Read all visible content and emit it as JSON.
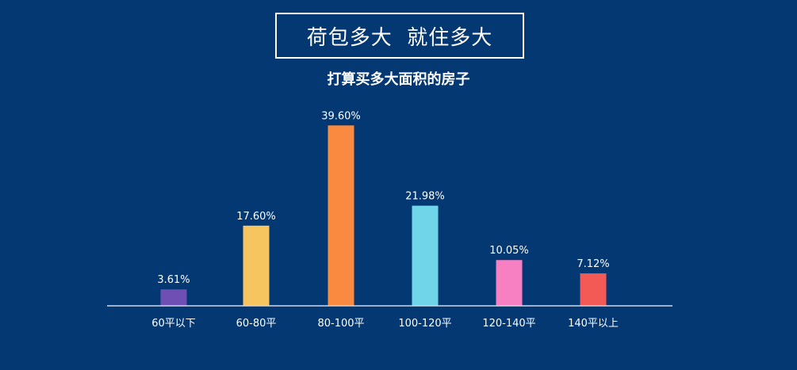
{
  "header": {
    "title": "荷包多大  就住多大",
    "subtitle": "打算买多大面积的房子"
  },
  "chart_data": {
    "type": "bar",
    "title": "荷包多大  就住多大",
    "subtitle": "打算买多大面积的房子",
    "categories": [
      "60平以下",
      "60-80平",
      "80-100平",
      "100-120平",
      "120-140平",
      "140平以上"
    ],
    "values": [
      3.61,
      17.6,
      39.6,
      21.98,
      10.05,
      7.12
    ],
    "value_labels": [
      "3.61%",
      "17.60%",
      "39.60%",
      "21.98%",
      "10.05%",
      "7.12%"
    ],
    "colors": [
      "#6f4fb4",
      "#f7c560",
      "#fa8a3f",
      "#70d5e8",
      "#f680c2",
      "#f35a55"
    ],
    "ylim": [
      0,
      40
    ],
    "grid": false,
    "legend": "none",
    "axis_color": "#cfd8e6"
  }
}
